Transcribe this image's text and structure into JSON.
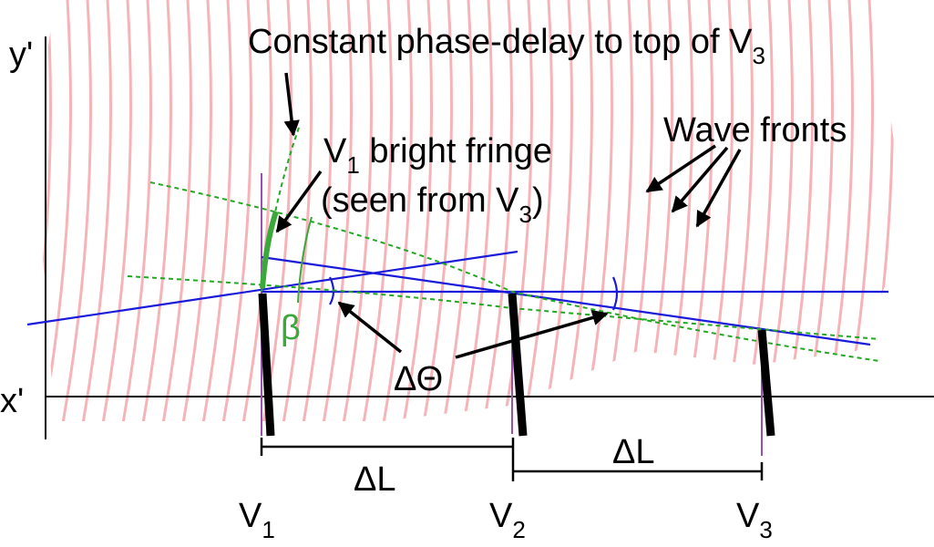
{
  "axes": {
    "y": "y'",
    "x": "x'"
  },
  "annotations": {
    "phase_delay": {
      "text": "Constant phase-delay to top of V",
      "sub": "3"
    },
    "fringe_line1": {
      "text": "V",
      "sub": "1",
      "rest": " bright fringe"
    },
    "fringe_line2": {
      "text": "(seen from V",
      "sub": "3",
      "rest": ")"
    },
    "wave_fronts": "Wave fronts",
    "beta": "β",
    "delta_theta": "ΔΘ"
  },
  "spacings": [
    "ΔL",
    "ΔL"
  ],
  "antennas": [
    {
      "label": "V",
      "sub": "1"
    },
    {
      "label": "V",
      "sub": "2"
    },
    {
      "label": "V",
      "sub": "3"
    }
  ]
}
